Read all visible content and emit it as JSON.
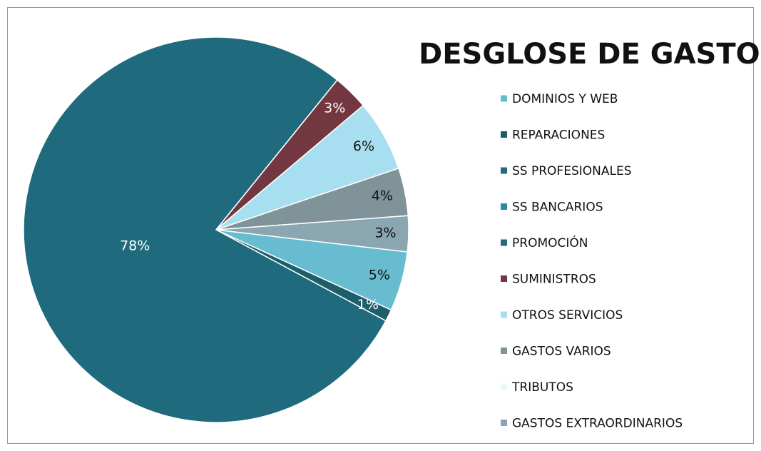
{
  "chart_data": {
    "type": "pie",
    "title": "DESGLOSE DE GASTOS",
    "series": [
      {
        "name": "DOMINIOS Y WEB",
        "color": "#68bcd0",
        "value": 5,
        "value_label": "5%"
      },
      {
        "name": "REPARACIONES",
        "color": "#1d5e6b",
        "value": 1,
        "value_label": "1%"
      },
      {
        "name": "SS PROFESIONALES",
        "color": "#1f6b7d",
        "value": 78,
        "value_label": "78%"
      },
      {
        "name": "SS BANCARIOS",
        "color": "#2a8aa8",
        "value": 0,
        "value_label": null
      },
      {
        "name": "PROMOCIÓN",
        "color": "#226b7b",
        "value": 0,
        "value_label": null
      },
      {
        "name": "SUMINISTROS",
        "color": "#733741",
        "value": 3,
        "value_label": "3%"
      },
      {
        "name": "OTROS SERVICIOS",
        "color": "#a8dff0",
        "value": 6,
        "value_label": "6%"
      },
      {
        "name": "GASTOS VARIOS",
        "color": "#7f9399",
        "value": 4,
        "value_label": "4%"
      },
      {
        "name": "TRIBUTOS",
        "color": "#eaf6fa",
        "value": 0,
        "value_label": null
      },
      {
        "name": "GASTOS EXTRAORDINARIOS",
        "color": "#8aa6b0",
        "value": 3,
        "value_label": "3%"
      }
    ],
    "legend": "right"
  }
}
